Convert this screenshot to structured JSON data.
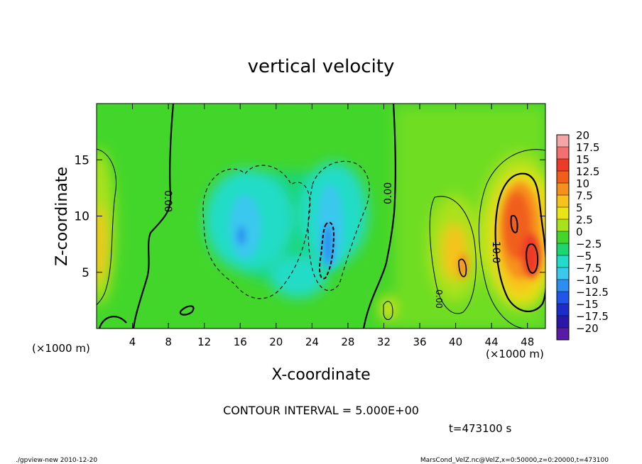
{
  "chart_data": {
    "type": "heatmap",
    "title": "vertical velocity",
    "xlabel": "X-coordinate",
    "ylabel": "Z-coordinate",
    "x_unit_left": "(×1000 m)",
    "x_unit_right": "(×1000 m)",
    "xlim": [
      0,
      50
    ],
    "ylim": [
      0,
      20
    ],
    "x_ticks": [
      4,
      8,
      12,
      16,
      20,
      24,
      28,
      32,
      36,
      40,
      44,
      48
    ],
    "y_ticks": [
      5,
      10,
      15
    ],
    "x_tick_labels": [
      "4",
      "8",
      "12",
      "16",
      "20",
      "24",
      "28",
      "32",
      "36",
      "40",
      "44",
      "48"
    ],
    "y_tick_labels": [
      "5",
      "10",
      "15"
    ],
    "colorbar": {
      "labels": [
        "20",
        "17.5",
        "15",
        "12.5",
        "10",
        "7.5",
        "5",
        "2.5",
        "0",
        "−2.5",
        "−5",
        "−7.5",
        "−10",
        "−12.5",
        "−15",
        "−17.5",
        "−20"
      ],
      "levels": [
        20,
        17.5,
        15,
        12.5,
        10,
        7.5,
        5,
        2.5,
        0,
        -2.5,
        -5,
        -7.5,
        -10,
        -12.5,
        -15,
        -17.5,
        -20
      ],
      "colors": [
        "#f4a6a6",
        "#f27070",
        "#ee3a28",
        "#f15e1a",
        "#f6901c",
        "#f8c21e",
        "#e9e414",
        "#a8e21a",
        "#43d62a",
        "#1fd66e",
        "#20dcc8",
        "#3ac8ee",
        "#2c8ef0",
        "#1f55e8",
        "#1a2dc8",
        "#2a17a8",
        "#5a1aa8"
      ]
    },
    "contour_labels": [
      "0.00",
      "0.00",
      "0.00",
      "10.0"
    ],
    "contour_interval_text": "CONTOUR INTERVAL = 5.000E+00",
    "time_text": "t=473100 s",
    "grid": false
  },
  "footer": {
    "left": "./gpview-new  2010-12-20",
    "right": "MarsCond_VelZ.nc@VelZ,x=0:50000,z=0:20000,t=473100"
  }
}
